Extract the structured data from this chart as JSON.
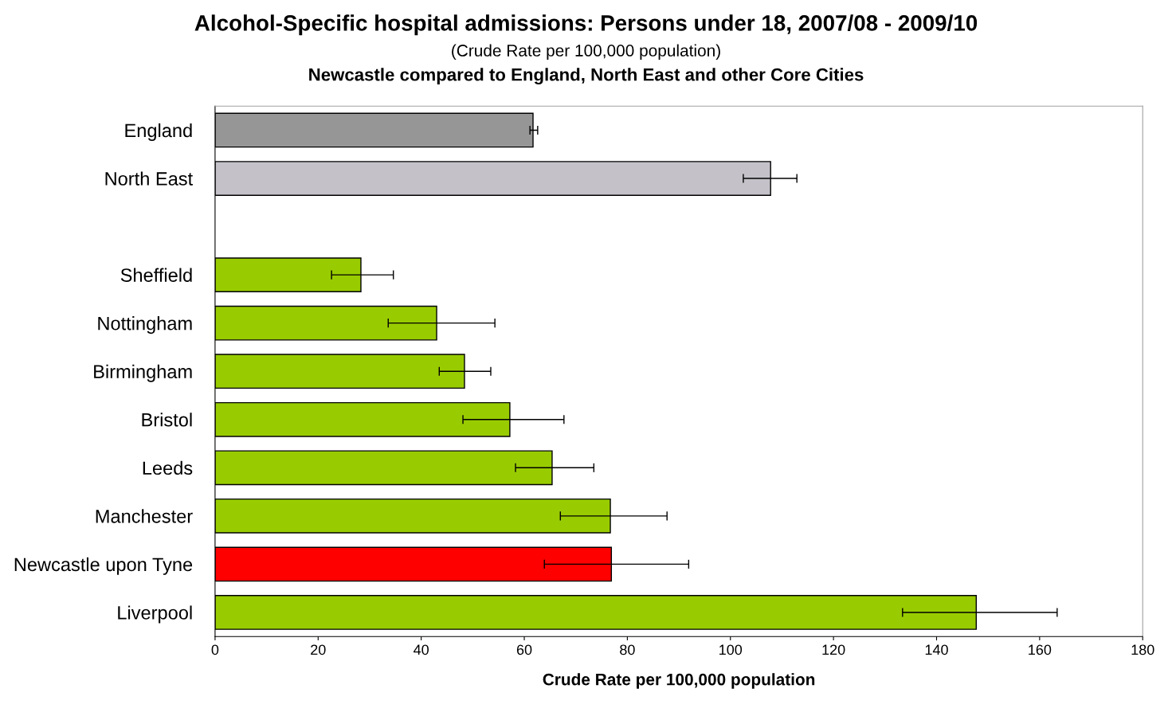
{
  "chart_data": {
    "type": "bar",
    "orientation": "horizontal",
    "title": "Alcohol-Specific hospital admissions: Persons under 18, 2007/08 - 2009/10",
    "subtitle": "(Crude Rate per 100,000 population)",
    "annotations": [
      "Newcastle compared to England, North East and other Core Cities"
    ],
    "xlabel": "Crude Rate per 100,000 population",
    "categories": [
      "England",
      "North East",
      null,
      "Sheffield",
      "Nottingham",
      "Birmingham",
      "Bristol",
      "Leeds",
      "Manchester",
      "Newcastle upon Tyne",
      "Liverpool"
    ],
    "values": [
      61.7,
      107.8,
      null,
      28.3,
      43.0,
      48.4,
      57.2,
      65.4,
      76.7,
      76.9,
      147.7
    ],
    "colors": [
      "#969696",
      "#c4c2c8",
      "#99cc00",
      "#99cc00",
      "#99cc00",
      "#99cc00",
      "#99cc00",
      "#99cc00",
      "#99cc00",
      "#ff0000",
      "#99cc00"
    ],
    "errors": [
      [
        61.1,
        62.6
      ],
      [
        102.5,
        112.9
      ],
      null,
      [
        22.6,
        34.6
      ],
      [
        33.6,
        54.3
      ],
      [
        43.5,
        53.5
      ],
      [
        48.1,
        67.7
      ],
      [
        58.3,
        73.5
      ],
      [
        67.0,
        87.7
      ],
      [
        63.9,
        91.9
      ],
      [
        133.4,
        163.4
      ]
    ],
    "xlim": [
      0,
      180
    ],
    "xticks": [
      0,
      20,
      40,
      60,
      80,
      100,
      120,
      140,
      160,
      180
    ],
    "grid": false,
    "legend": false
  }
}
